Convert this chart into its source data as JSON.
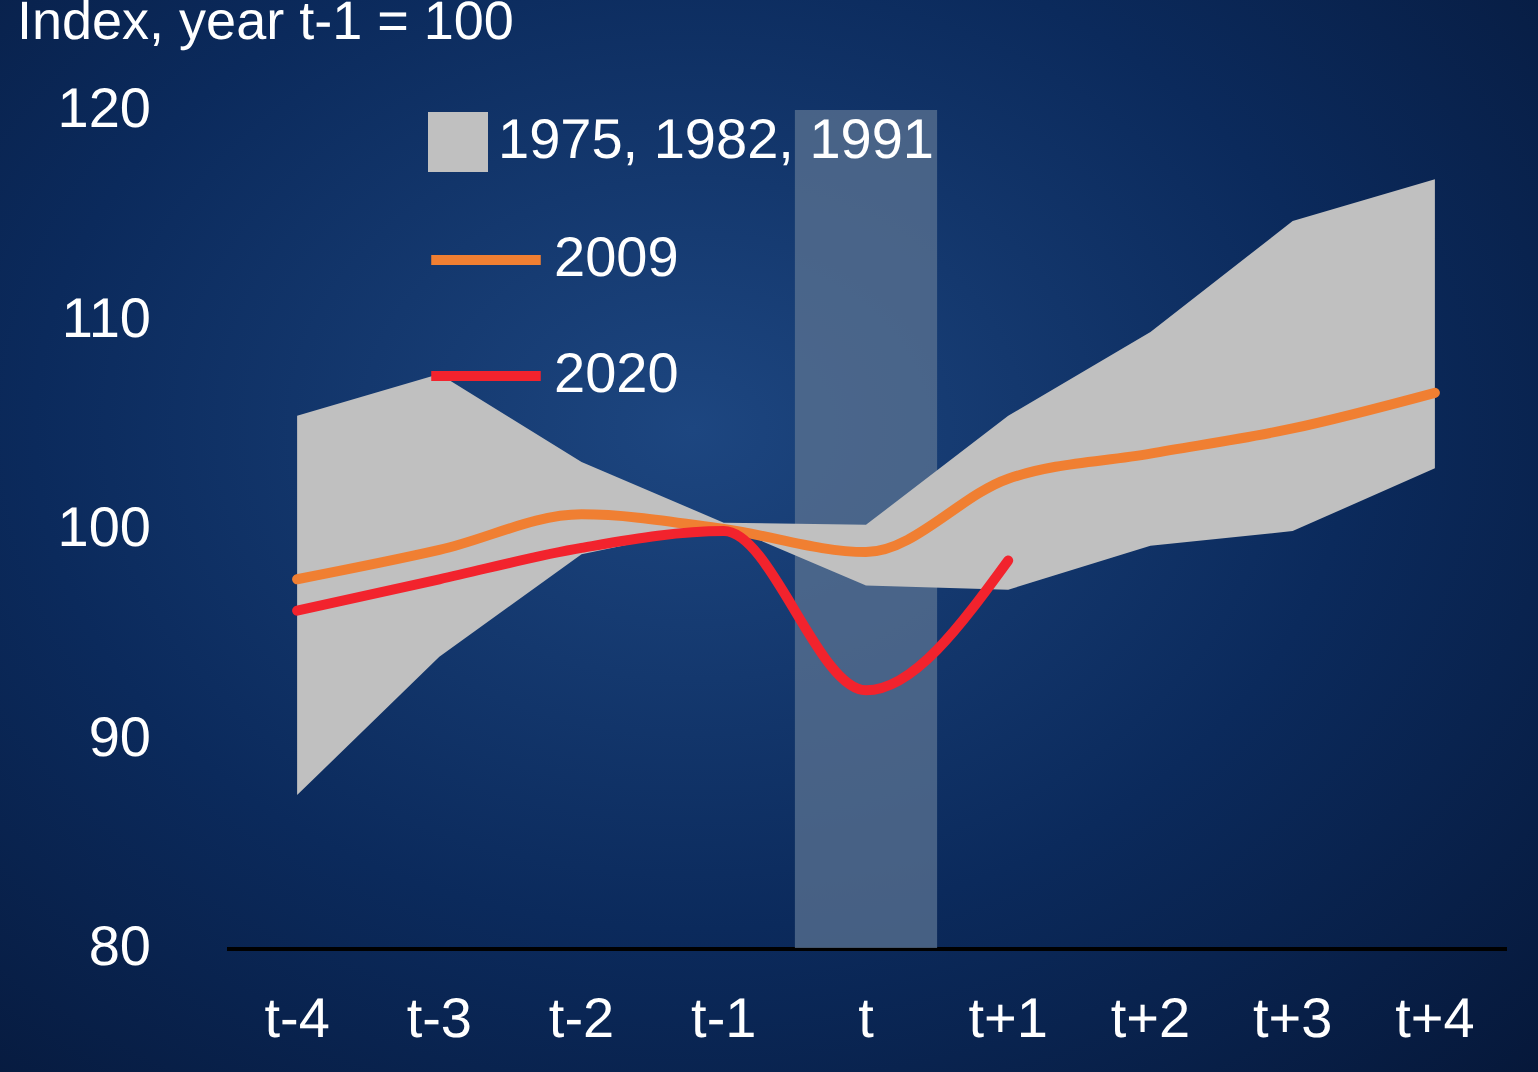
{
  "chart_data": {
    "type": "line",
    "ylabel": "Index, year t-1 = 100",
    "categories": [
      "t-4",
      "t-3",
      "t-2",
      "t-1",
      "t",
      "t+1",
      "t+2",
      "t+3",
      "t+4"
    ],
    "series": [
      {
        "name": "1975, 1982, 1991",
        "color": "#c0c0c0",
        "values": [
          null,
          null,
          null,
          null,
          null,
          null,
          null,
          null,
          null
        ],
        "lower": [
          87.3,
          93.9,
          98.8,
          100.2,
          97.3,
          97.1,
          99.2,
          99.9,
          102.9
        ],
        "upper": [
          105.4,
          107.4,
          103.2,
          100.3,
          100.2,
          105.4,
          109.4,
          114.7,
          116.7
        ]
      },
      {
        "name": "2009",
        "type": "line",
        "color": "#f07f32",
        "values": [
          97.6,
          99.0,
          100.7,
          100.0,
          98.9,
          102.4,
          103.6,
          104.8,
          106.5
        ]
      },
      {
        "name": "2020",
        "type": "line",
        "color": "#f2232d",
        "values": [
          96.1,
          97.6,
          99.1,
          99.9,
          92.3,
          98.5,
          null,
          null,
          null
        ]
      }
    ],
    "bands": [
      {
        "axis": "x",
        "from": "t",
        "to": "t",
        "color": "#5b7391"
      }
    ],
    "ylim": [
      80,
      120
    ],
    "yticks": [
      80,
      90,
      100,
      110,
      120
    ],
    "grid": false,
    "legend": "top left",
    "line_style": "solid",
    "marker": "none"
  }
}
